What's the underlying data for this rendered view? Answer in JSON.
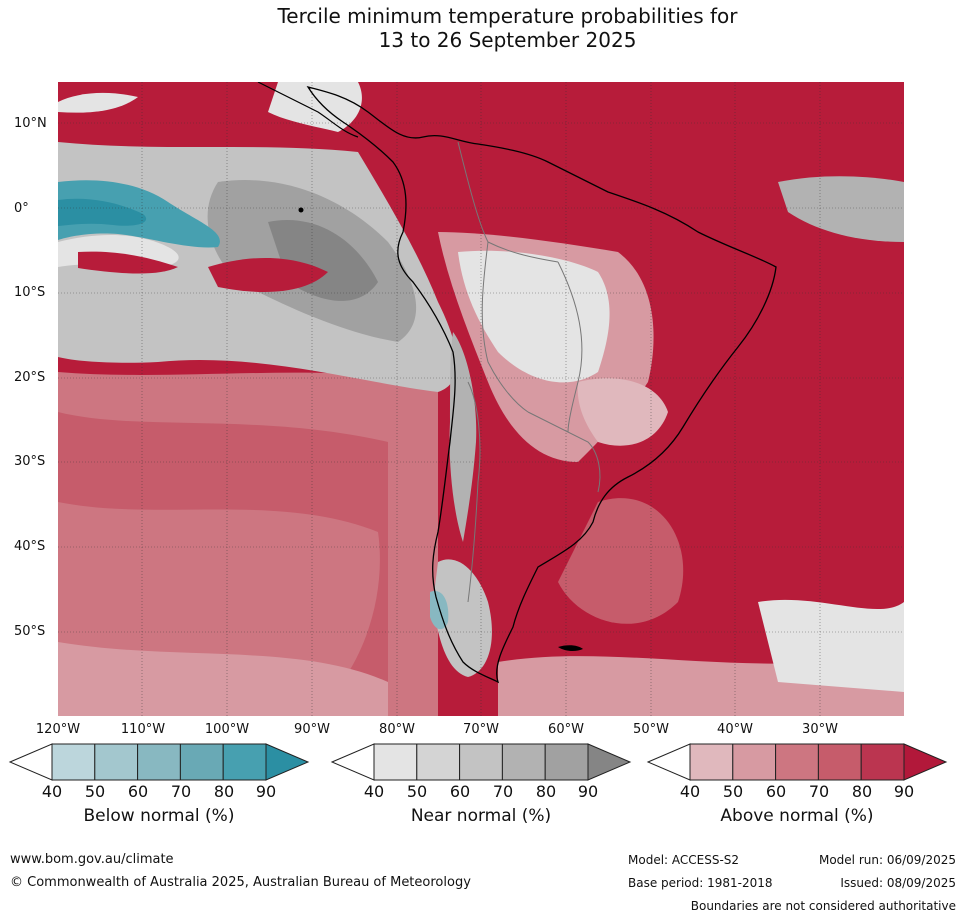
{
  "title": {
    "line1": "Tercile minimum temperature probabilities for",
    "line2": "13 to 26 September 2025"
  },
  "latitude_labels": [
    "10°N",
    "0°",
    "10°S",
    "20°S",
    "30°S",
    "40°S",
    "50°S"
  ],
  "longitude_labels": [
    "120°W",
    "110°W",
    "100°W",
    "90°W",
    "80°W",
    "70°W",
    "60°W",
    "50°W",
    "40°W",
    "30°W"
  ],
  "legends": [
    {
      "title": "Below normal (%)",
      "ticks": [
        "40",
        "50",
        "60",
        "70",
        "80",
        "90"
      ],
      "colors": [
        "#bcd6dc",
        "#a3c7ce",
        "#88b8c1",
        "#69a9b5",
        "#47a0b0",
        "#2b8fa3"
      ]
    },
    {
      "title": "Near normal (%)",
      "ticks": [
        "40",
        "50",
        "60",
        "70",
        "80",
        "90"
      ],
      "colors": [
        "#e4e4e4",
        "#d4d4d4",
        "#c3c3c3",
        "#b2b2b2",
        "#a1a1a1",
        "#858585"
      ]
    },
    {
      "title": "Above normal (%)",
      "ticks": [
        "40",
        "50",
        "60",
        "70",
        "80",
        "90"
      ],
      "colors": [
        "#e0b8bd",
        "#d79aa2",
        "#cd7681",
        "#c65c6b",
        "#bb3550",
        "#b2183a"
      ]
    }
  ],
  "footer": {
    "website": "www.bom.gov.au/climate",
    "copyright": "© Commonwealth of Australia 2025, Australian Bureau of Meteorology",
    "model": "Model: ACCESS-S2",
    "base_period": "Base period: 1981-2018",
    "model_run": "Model run: 06/09/2025",
    "issued": "Issued: 08/09/2025",
    "disclaimer": "Boundaries are not considered authoritative"
  },
  "colors": {
    "above_dark": "#b2183a",
    "above_mid": "#cd7681",
    "above_light": "#e0b8bd",
    "near_light": "#e4e4e4",
    "near_mid": "#b2b2b2",
    "near_dark": "#858585",
    "below_mid": "#69a9b5",
    "below_dark": "#2b8fa3"
  }
}
